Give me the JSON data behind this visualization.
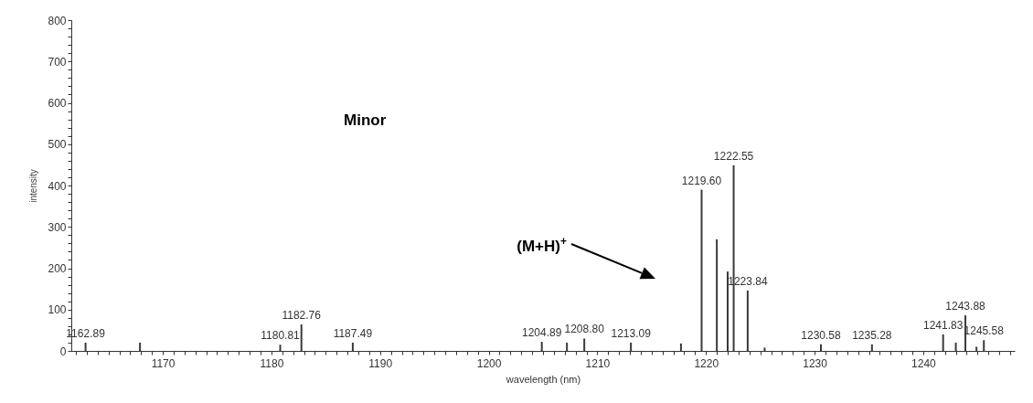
{
  "chart_data": {
    "type": "bar",
    "xlabel": "wavelength (nm)",
    "ylabel": "intensity",
    "color": "#3a3a3a",
    "x": [
      1162.89,
      1167.9,
      1180.81,
      1182.76,
      1187.49,
      1204.89,
      1207.2,
      1208.8,
      1213.09,
      1217.7,
      1219.6,
      1221.0,
      1222.0,
      1222.55,
      1223.84,
      1225.4,
      1230.58,
      1235.28,
      1241.83,
      1243.0,
      1243.88,
      1244.9,
      1245.58
    ],
    "values": [
      20,
      20,
      15,
      64,
      20,
      22,
      20,
      30,
      20,
      18,
      390,
      270,
      192,
      449,
      146,
      8,
      16,
      16,
      40,
      20,
      86,
      10,
      26
    ],
    "xlim": [
      1162,
      1248
    ],
    "xticks": [
      {
        "value": 1162,
        "label": null
      },
      {
        "value": 1163,
        "label": null
      },
      {
        "value": 1164,
        "label": null
      },
      {
        "value": 1165,
        "label": null
      },
      {
        "value": 1166,
        "label": null
      },
      {
        "value": 1167,
        "label": null
      },
      {
        "value": 1168,
        "label": null
      },
      {
        "value": 1169,
        "label": null
      },
      1170,
      {
        "value": 1171,
        "label": null
      },
      {
        "value": 1172,
        "label": null
      },
      {
        "value": 1173,
        "label": null
      },
      {
        "value": 1174,
        "label": null
      },
      {
        "value": 1175,
        "label": null
      },
      {
        "value": 1176,
        "label": null
      },
      {
        "value": 1177,
        "label": null
      },
      {
        "value": 1178,
        "label": null
      },
      {
        "value": 1179,
        "label": null
      },
      1180,
      {
        "value": 1181,
        "label": null
      },
      {
        "value": 1182,
        "label": null
      },
      {
        "value": 1183,
        "label": null
      },
      {
        "value": 1184,
        "label": null
      },
      {
        "value": 1185,
        "label": null
      },
      {
        "value": 1186,
        "label": null
      },
      {
        "value": 1187,
        "label": null
      },
      {
        "value": 1188,
        "label": null
      },
      {
        "value": 1189,
        "label": null
      },
      1190,
      {
        "value": 1191,
        "label": null
      },
      {
        "value": 1192,
        "label": null
      },
      {
        "value": 1193,
        "label": null
      },
      {
        "value": 1194,
        "label": null
      },
      {
        "value": 1195,
        "label": null
      },
      {
        "value": 1196,
        "label": null
      },
      {
        "value": 1197,
        "label": null
      },
      {
        "value": 1198,
        "label": null
      },
      {
        "value": 1199,
        "label": null
      },
      1200,
      {
        "value": 1201,
        "label": null
      },
      {
        "value": 1202,
        "label": null
      },
      {
        "value": 1203,
        "label": null
      },
      {
        "value": 1204,
        "label": null
      },
      {
        "value": 1205,
        "label": null
      },
      {
        "value": 1206,
        "label": null
      },
      {
        "value": 1207,
        "label": null
      },
      {
        "value": 1208,
        "label": null
      },
      {
        "value": 1209,
        "label": null
      },
      1210,
      {
        "value": 1211,
        "label": null
      },
      {
        "value": 1212,
        "label": null
      },
      {
        "value": 1213,
        "label": null
      },
      {
        "value": 1214,
        "label": null
      },
      {
        "value": 1215,
        "label": null
      },
      {
        "value": 1216,
        "label": null
      },
      {
        "value": 1217,
        "label": null
      },
      {
        "value": 1218,
        "label": null
      },
      {
        "value": 1219,
        "label": null
      },
      1220,
      {
        "value": 1221,
        "label": null
      },
      {
        "value": 1222,
        "label": null
      },
      {
        "value": 1223,
        "label": null
      },
      {
        "value": 1224,
        "label": null
      },
      {
        "value": 1225,
        "label": null
      },
      {
        "value": 1226,
        "label": null
      },
      {
        "value": 1227,
        "label": null
      },
      {
        "value": 1228,
        "label": null
      },
      {
        "value": 1229,
        "label": null
      },
      1230,
      {
        "value": 1231,
        "label": null
      },
      {
        "value": 1232,
        "label": null
      },
      {
        "value": 1233,
        "label": null
      },
      {
        "value": 1234,
        "label": null
      },
      {
        "value": 1235,
        "label": null
      },
      {
        "value": 1236,
        "label": null
      },
      {
        "value": 1237,
        "label": null
      },
      {
        "value": 1238,
        "label": null
      },
      {
        "value": 1239,
        "label": null
      },
      1240,
      {
        "value": 1241,
        "label": null
      },
      {
        "value": 1242,
        "label": null
      },
      {
        "value": 1243,
        "label": null
      },
      {
        "value": 1244,
        "label": null
      },
      {
        "value": 1245,
        "label": null
      },
      {
        "value": 1246,
        "label": null
      },
      {
        "value": 1247,
        "label": null
      },
      {
        "value": 1248,
        "label": null
      }
    ],
    "ylim": [
      0,
      800
    ],
    "yticks": [
      0,
      {
        "value": 20,
        "label": null
      },
      {
        "value": 40,
        "label": null
      },
      {
        "value": 60,
        "label": null
      },
      {
        "value": 80,
        "label": null
      },
      100,
      {
        "value": 120,
        "label": null
      },
      {
        "value": 140,
        "label": null
      },
      {
        "value": 160,
        "label": null
      },
      {
        "value": 180,
        "label": null
      },
      200,
      {
        "value": 220,
        "label": null
      },
      {
        "value": 240,
        "label": null
      },
      {
        "value": 260,
        "label": null
      },
      {
        "value": 280,
        "label": null
      },
      300,
      {
        "value": 320,
        "label": null
      },
      {
        "value": 340,
        "label": null
      },
      {
        "value": 360,
        "label": null
      },
      {
        "value": 380,
        "label": null
      },
      400,
      {
        "value": 420,
        "label": null
      },
      {
        "value": 440,
        "label": null
      },
      {
        "value": 460,
        "label": null
      },
      {
        "value": 480,
        "label": null
      },
      500,
      {
        "value": 520,
        "label": null
      },
      {
        "value": 540,
        "label": null
      },
      {
        "value": 560,
        "label": null
      },
      {
        "value": 580,
        "label": null
      },
      600,
      {
        "value": 620,
        "label": null
      },
      {
        "value": 640,
        "label": null
      },
      {
        "value": 660,
        "label": null
      },
      {
        "value": 680,
        "label": null
      },
      700,
      {
        "value": 720,
        "label": null
      },
      {
        "value": 740,
        "label": null
      },
      {
        "value": 760,
        "label": null
      },
      {
        "value": 780,
        "label": null
      },
      800
    ],
    "annotations": [
      "Minor",
      "(M+H)$^{+}$",
      {
        "text": "1162.89",
        "x": 1162.89,
        "y": 20
      },
      {
        "text": "1180.81",
        "x": 1180.81,
        "y": 15
      },
      {
        "text": "1182.76",
        "x": 1182.76,
        "y": 64
      },
      {
        "text": "1187.49",
        "x": 1187.49,
        "y": 20
      },
      {
        "text": "1204.89",
        "x": 1204.89,
        "y": 22
      },
      {
        "text": "1208.80",
        "x": 1208.8,
        "y": 30
      },
      {
        "text": "1213.09",
        "x": 1213.09,
        "y": 20
      },
      {
        "text": "1219.60",
        "x": 1219.6,
        "y": 390
      },
      {
        "text": "1222.55",
        "x": 1222.55,
        "y": 449
      },
      {
        "text": "1223.84",
        "x": 1223.84,
        "y": 146
      },
      {
        "text": "1230.58",
        "x": 1230.58,
        "y": 16
      },
      {
        "text": "1235.28",
        "x": 1235.28,
        "y": 16
      },
      {
        "text": "1241.83",
        "x": 1241.83,
        "y": 40
      },
      {
        "text": "1243.88",
        "x": 1243.88,
        "y": 86
      },
      {
        "text": "1245.58",
        "x": 1245.58,
        "y": 26
      }
    ]
  }
}
